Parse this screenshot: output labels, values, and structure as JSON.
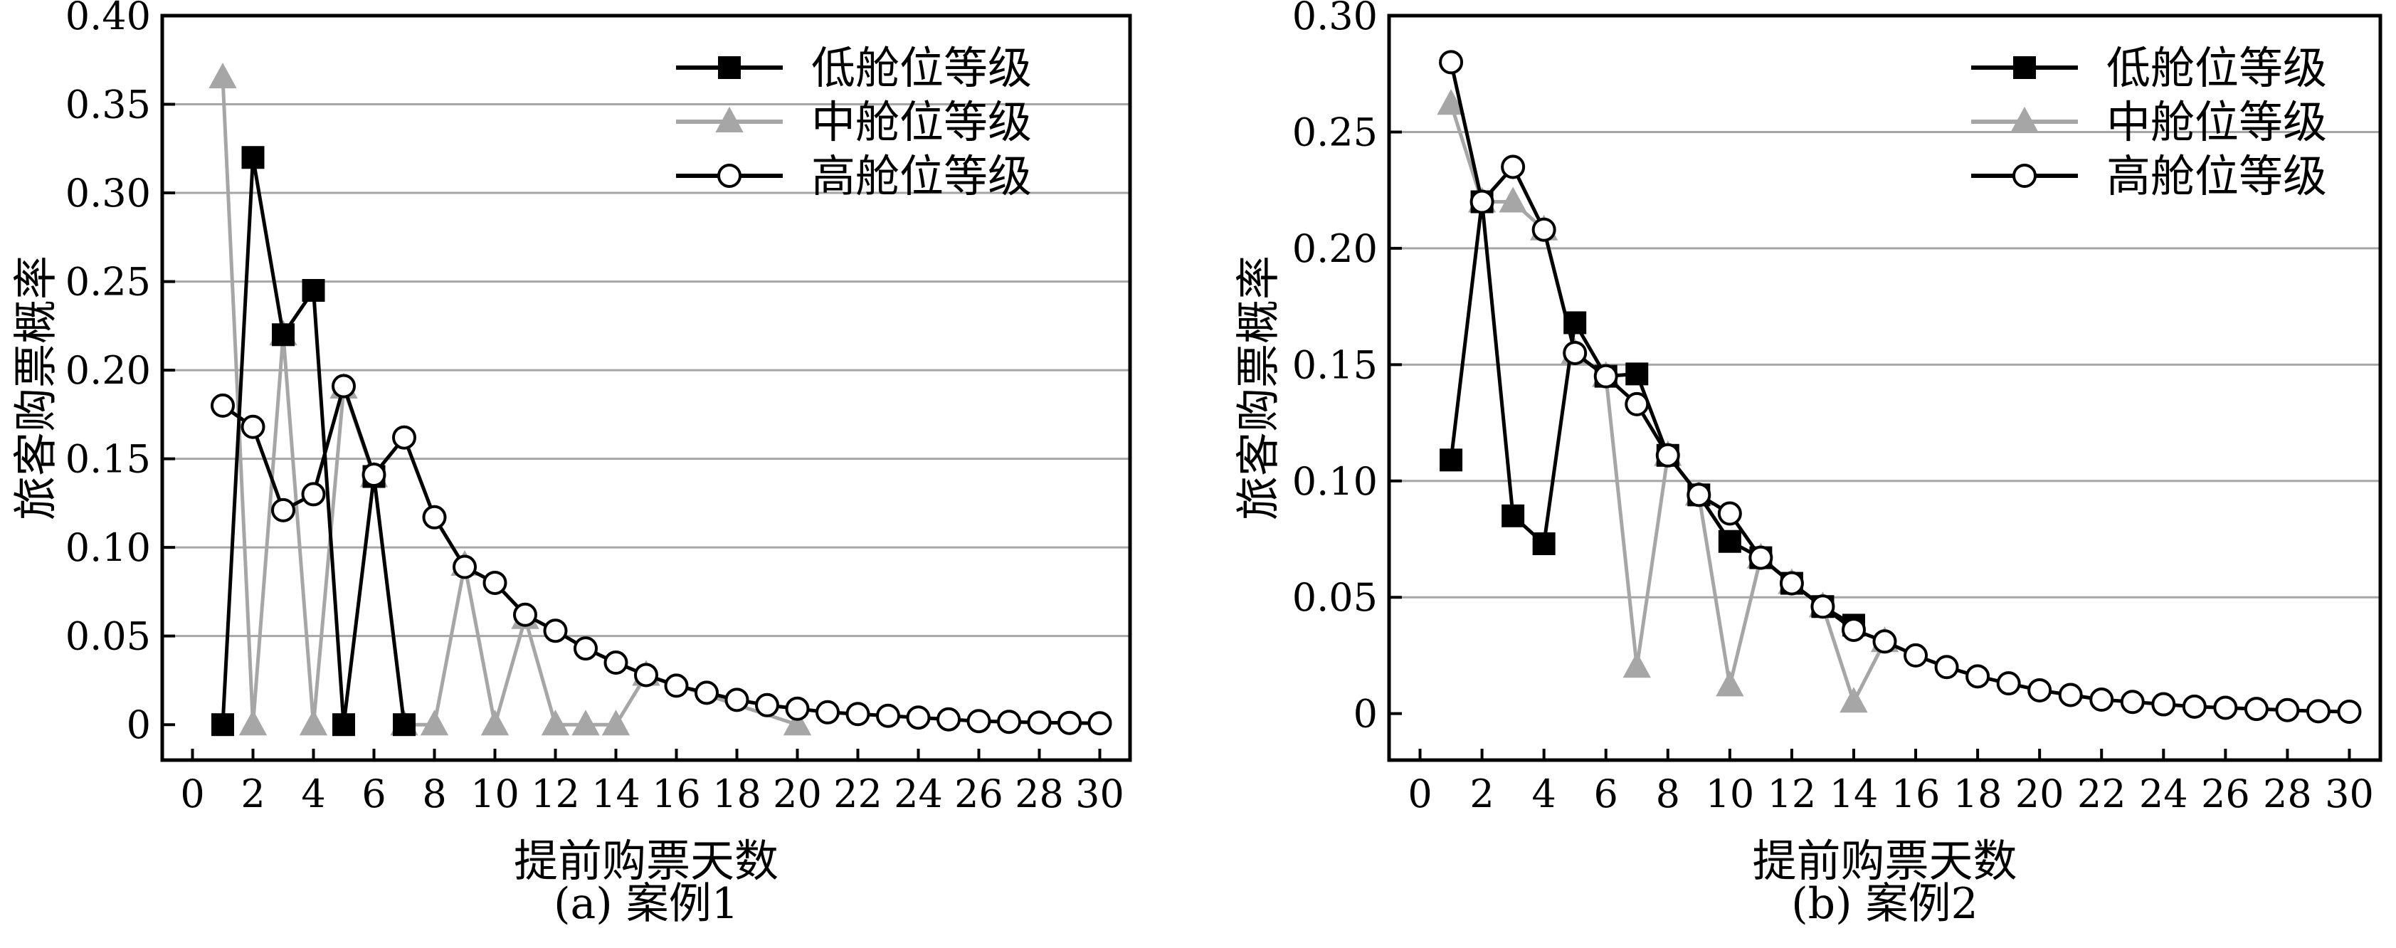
{
  "chart_data": [
    {
      "type": "line",
      "caption": "(a) 案例1",
      "xlabel": "提前购票天数",
      "ylabel": "旅客购票概率",
      "xlim": [
        -1,
        31
      ],
      "ylim": [
        -0.02,
        0.4
      ],
      "xticks": [
        0,
        2,
        4,
        6,
        8,
        10,
        12,
        14,
        16,
        18,
        20,
        22,
        24,
        26,
        28,
        30
      ],
      "xtick_labels": [
        "0",
        "2",
        "4",
        "6",
        "8",
        "10",
        "12",
        "14",
        "16",
        "18",
        "20",
        "22",
        "24",
        "26",
        "28",
        "30"
      ],
      "yticks": [
        0,
        0.05,
        0.1,
        0.15,
        0.2,
        0.25,
        0.3,
        0.35,
        0.4
      ],
      "ytick_labels": [
        "0",
        "0.05",
        "0.10",
        "0.15",
        "0.20",
        "0.25",
        "0.30",
        "0.35",
        "0.40"
      ],
      "grid": "horizontal",
      "legend_position": "top-right",
      "series": [
        {
          "name": "低舱位等级",
          "color": "#000000",
          "marker": "square",
          "x": [
            1,
            2,
            3,
            4,
            5,
            6,
            7
          ],
          "y": [
            0,
            0.32,
            0.22,
            0.245,
            0,
            0.14,
            0
          ]
        },
        {
          "name": "中舱位等级",
          "color": "#a6a6a6",
          "marker": "triangle",
          "x": [
            1,
            2,
            3,
            4,
            5,
            6,
            7,
            8,
            9,
            10,
            11,
            12,
            13,
            14,
            15,
            20
          ],
          "y": [
            0.365,
            0,
            0.22,
            0,
            0.19,
            0.14,
            0,
            0,
            0.09,
            0,
            0.06,
            0,
            0,
            0,
            0.028,
            0
          ]
        },
        {
          "name": "高舱位等级",
          "color": "#000000",
          "marker": "circle",
          "x": [
            1,
            2,
            3,
            4,
            5,
            6,
            7,
            8,
            9,
            10,
            11,
            12,
            13,
            14,
            15,
            16,
            17,
            18,
            19,
            20,
            21,
            22,
            23,
            24,
            25,
            26,
            27,
            28,
            29,
            30
          ],
          "y": [
            0.18,
            0.168,
            0.121,
            0.13,
            0.191,
            0.141,
            0.162,
            0.117,
            0.089,
            0.08,
            0.062,
            0.053,
            0.043,
            0.035,
            0.028,
            0.022,
            0.018,
            0.014,
            0.011,
            0.009,
            0.007,
            0.006,
            0.005,
            0.004,
            0.003,
            0.002,
            0.0016,
            0.0012,
            0.001,
            0.0008
          ]
        }
      ]
    },
    {
      "type": "line",
      "caption": "(b) 案例2",
      "xlabel": "提前购票天数",
      "ylabel": "旅客购票概率",
      "xlim": [
        -1,
        31
      ],
      "ylim": [
        -0.02,
        0.3
      ],
      "xticks": [
        0,
        2,
        4,
        6,
        8,
        10,
        12,
        14,
        16,
        18,
        20,
        22,
        24,
        26,
        28,
        30
      ],
      "xtick_labels": [
        "0",
        "2",
        "4",
        "6",
        "8",
        "10",
        "12",
        "14",
        "16",
        "18",
        "20",
        "22",
        "24",
        "26",
        "28",
        "30"
      ],
      "yticks": [
        0,
        0.05,
        0.1,
        0.15,
        0.2,
        0.25,
        0.3
      ],
      "ytick_labels": [
        "0",
        "0.05",
        "0.10",
        "0.15",
        "0.20",
        "0.25",
        "0.30"
      ],
      "grid": "horizontal",
      "legend_position": "top-right",
      "series": [
        {
          "name": "低舱位等级",
          "color": "#000000",
          "marker": "square",
          "x": [
            1,
            2,
            3,
            4,
            5,
            6,
            7,
            8,
            9,
            10,
            11,
            12,
            13,
            14
          ],
          "y": [
            0.109,
            0.22,
            0.085,
            0.073,
            0.168,
            0.145,
            0.146,
            0.111,
            0.094,
            0.074,
            0.067,
            0.056,
            0.046,
            0.038
          ]
        },
        {
          "name": "中舱位等级",
          "color": "#a6a6a6",
          "marker": "triangle",
          "x": [
            1,
            2,
            3,
            4,
            5,
            6,
            7,
            8,
            9,
            10,
            11,
            12,
            13,
            14,
            15
          ],
          "y": [
            0.262,
            0.22,
            0.22,
            0.208,
            0.155,
            0.145,
            0.02,
            0.111,
            0.094,
            0.012,
            0.067,
            0.056,
            0.046,
            0.005,
            0.031
          ]
        },
        {
          "name": "高舱位等级",
          "color": "#000000",
          "marker": "circle",
          "x": [
            1,
            2,
            3,
            4,
            5,
            6,
            7,
            8,
            9,
            10,
            11,
            12,
            13,
            14,
            15,
            16,
            17,
            18,
            19,
            20,
            21,
            22,
            23,
            24,
            25,
            26,
            27,
            28,
            29,
            30
          ],
          "y": [
            0.28,
            0.22,
            0.235,
            0.208,
            0.155,
            0.145,
            0.133,
            0.111,
            0.094,
            0.086,
            0.067,
            0.056,
            0.046,
            0.036,
            0.031,
            0.025,
            0.02,
            0.016,
            0.013,
            0.01,
            0.008,
            0.006,
            0.005,
            0.004,
            0.003,
            0.0025,
            0.002,
            0.0015,
            0.001,
            0.0008
          ]
        }
      ]
    }
  ]
}
